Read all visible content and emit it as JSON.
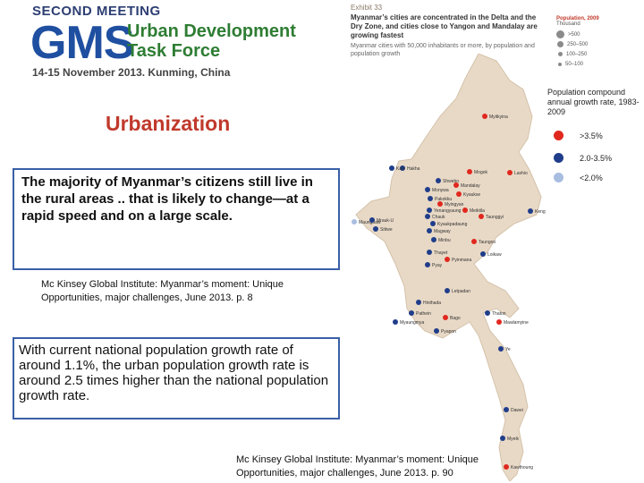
{
  "header": {
    "meeting": "SECOND MEETING",
    "logo": "GMS",
    "subtitle_line1": "Urban Development",
    "subtitle_line2": "Task Force",
    "date_place": "14-15 November 2013. Kunming, China"
  },
  "section_title": "Urbanization",
  "box1_text": "The majority of Myanmar’s citizens still live in the rural areas .. that is likely to change—at a rapid speed and on a large scale.",
  "citation1": "Mc Kinsey Global Institute: Myanmar’s moment: Unique Opportunities, major challenges, June 2013. p. 8",
  "box2_text": "With current national population growth rate of around 1.1%, the urban population growth rate is around 2.5 times higher than the national population growth rate.",
  "citation2": "Mc Kinsey Global Institute: Myanmar’s moment: Unique Opportunities, major challenges, June 2013. p. 90",
  "exhibit": {
    "label": "Exhibit 33",
    "title": "Myanmar’s cities are concentrated in the Delta and the Dry Zone, and cities close to Yangon and Mandalay are growing fastest",
    "subtitle": "Myanmar cities with 50,000 inhabitants or more, by population and population growth",
    "population_legend": {
      "title": "Population, 2009",
      "unit": "Thousand",
      "items": [
        ">500",
        "250–500",
        "100–250",
        "50–100"
      ]
    }
  },
  "growth_legend": {
    "title": "Population compound annual growth rate, 1983-2009",
    "items": [
      {
        "label": ">3.5%",
        "color": "#e0281f"
      },
      {
        "label": "2.0-3.5%",
        "color": "#1f3d8a"
      },
      {
        "label": "<2.0%",
        "color": "#a9bde0"
      }
    ]
  },
  "map": {
    "land_color": "#e8d9c6",
    "city_labels": [
      "Myitkyina",
      "Hakha",
      "Lashio",
      "Kale",
      "Mogok",
      "Shwebo",
      "Mandalay",
      "Kyaukse",
      "Monywa",
      "Pakokku",
      "Myingyan",
      "Yenangyaung",
      "Chauk",
      "Kyaukpadaung",
      "Meiktila",
      "Taunggyi",
      "Magway",
      "Minbu",
      "Kengtung",
      "Taungoo",
      "Maungdaw",
      "Sittwe",
      "Mrauk-U",
      "Thayet",
      "Pyay",
      "Loikaw",
      "Pyinmana",
      "Letpadan",
      "Hinthada",
      "Pathein",
      "Bago",
      "Pyapon",
      "Myaungmya",
      "Thaton",
      "Mawlamyine",
      "Ye",
      "Dawei",
      "Myeik",
      "Kawthoung"
    ]
  }
}
